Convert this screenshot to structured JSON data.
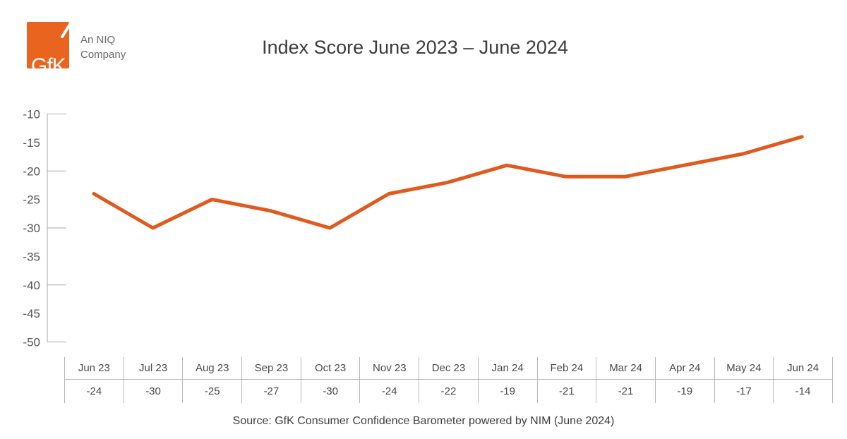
{
  "logo": {
    "brand": "GfK",
    "tagline_line1": "An NIQ",
    "tagline_line2": "Company",
    "color": "#E8641F"
  },
  "header": {
    "title": "Index Score June 2023 – June 2024"
  },
  "source": "Source: GfK Consumer Confidence Barometer powered by NIM (June 2024)",
  "colors": {
    "line": "#E05A1E",
    "axis": "#a8a8a8",
    "table_border": "#b9b9b9",
    "text_dark": "#3c3c3c",
    "text_gray": "#575757"
  },
  "chart_data": {
    "type": "line",
    "title": "Index Score June 2023 – June 2024",
    "categories": [
      "Jun 23",
      "Jul 23",
      "Aug 23",
      "Sep 23",
      "Oct 23",
      "Nov 23",
      "Dec 23",
      "Jan 24",
      "Feb 24",
      "Mar 24",
      "Apr 24",
      "May 24",
      "Jun 24"
    ],
    "series": [
      {
        "name": "Index Score",
        "values": [
          -24,
          -30,
          -25,
          -27,
          -30,
          -24,
          -22,
          -19,
          -21,
          -21,
          -19,
          -17,
          -14
        ]
      }
    ],
    "ylim": [
      -50,
      -10
    ],
    "ytick_labels": [
      -10,
      -15,
      -20,
      -25,
      -30,
      -35,
      -40,
      -45,
      -50
    ],
    "ytick_marks": [
      -10,
      -20,
      -30,
      -40,
      -50
    ],
    "grid": false,
    "legend": "none",
    "line_color": "#E05A1E",
    "data_table_shown": true,
    "source": "Source: GfK Consumer Confidence Barometer powered by NIM (June 2024)"
  }
}
